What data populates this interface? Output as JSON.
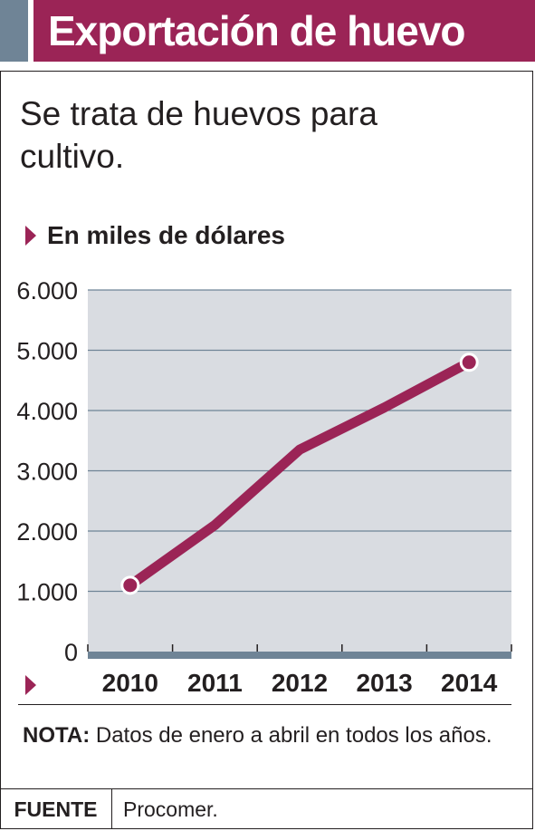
{
  "header": {
    "title": "Exportación de huevo"
  },
  "subtitle": "Se trata de huevos para cultivo.",
  "unit_label": "En miles de dólares",
  "note": {
    "label": "NOTA:",
    "text": "Datos de enero a abril en todos los años."
  },
  "source": {
    "label": "FUENTE",
    "value": "Procomer."
  },
  "colors": {
    "accent": "#9b2456",
    "header_side": "#6f8496",
    "plot_bg": "#d9dce1",
    "axis": "#6f8496",
    "grid": "#6f8496"
  },
  "chart_data": {
    "type": "line",
    "title": "",
    "xlabel": "",
    "ylabel": "",
    "x": [
      "2010",
      "2011",
      "2012",
      "2013",
      "2014"
    ],
    "y_tick_labels": [
      "0",
      "1.000",
      "2.000",
      "3.000",
      "4.000",
      "5.000",
      "6.000"
    ],
    "ylim": [
      0,
      6000
    ],
    "grid": true,
    "legend": "none",
    "series": [
      {
        "values": [
          1100,
          2100,
          3350,
          4050,
          4800
        ]
      }
    ],
    "highlighted_points": [
      "2010",
      "2014"
    ]
  }
}
